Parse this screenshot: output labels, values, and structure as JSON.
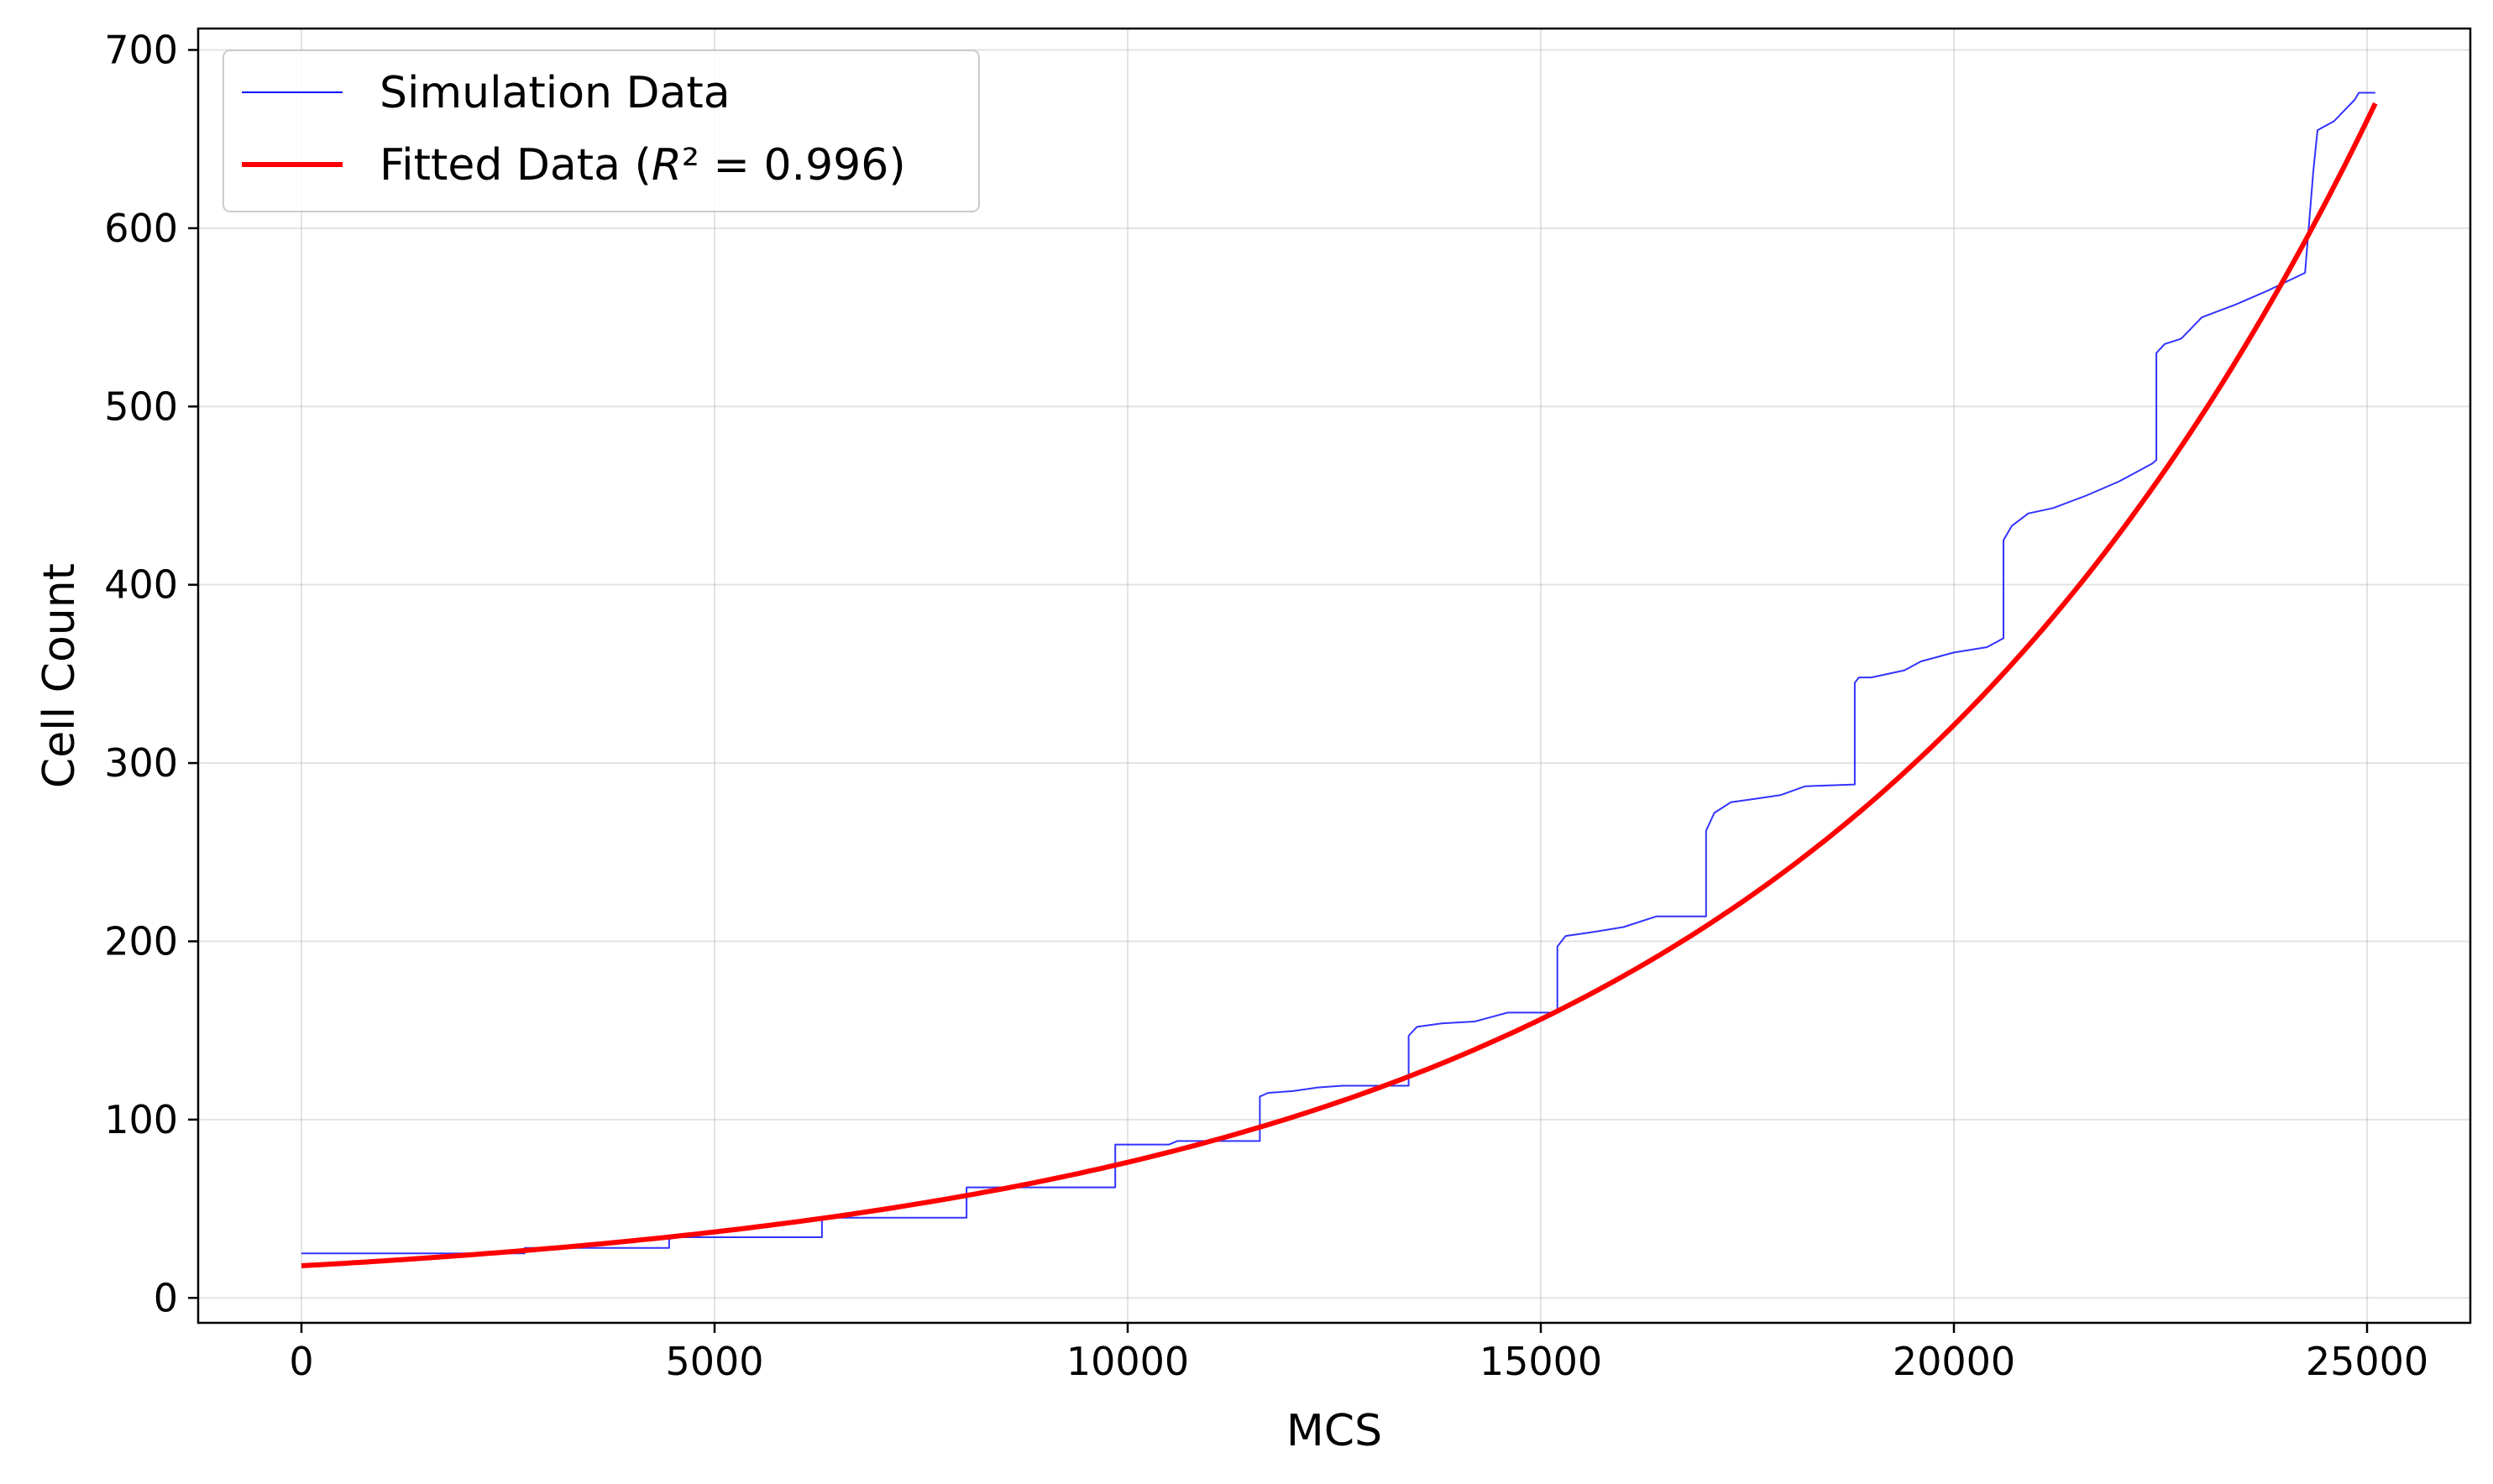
{
  "chart_data": {
    "type": "line",
    "xlabel": "MCS",
    "ylabel": "Cell Count",
    "xlim": [
      -1250,
      26250
    ],
    "ylim": [
      -14,
      712
    ],
    "x_ticks": [
      0,
      5000,
      10000,
      15000,
      20000,
      25000
    ],
    "x_tick_labels": [
      "0",
      "5000",
      "10000",
      "15000",
      "20000",
      "25000"
    ],
    "y_ticks": [
      0,
      100,
      200,
      300,
      400,
      500,
      600,
      700
    ],
    "y_tick_labels": [
      "0",
      "100",
      "200",
      "300",
      "400",
      "500",
      "600",
      "700"
    ],
    "grid": true,
    "legend_position": "upper-left",
    "series": [
      {
        "name": "Simulation Data",
        "color": "#0000ff",
        "style": "step",
        "x": [
          0,
          2700,
          2700,
          4450,
          4450,
          4550,
          6300,
          6300,
          6500,
          8050,
          8050,
          8200,
          9850,
          9850,
          10000,
          10500,
          10600,
          11600,
          11600,
          11700,
          12000,
          12300,
          12600,
          13400,
          13400,
          13500,
          13800,
          14200,
          14600,
          15200,
          15200,
          15300,
          15600,
          16000,
          16400,
          17000,
          17000,
          17100,
          17300,
          17600,
          17900,
          18200,
          18800,
          18800,
          18850,
          19000,
          19200,
          19400,
          19600,
          20000,
          20400,
          20600,
          20600,
          20700,
          20900,
          21200,
          21600,
          22000,
          22400,
          22450,
          22450,
          22550,
          22750,
          23000,
          23400,
          23800,
          24250,
          24350,
          24400,
          24600,
          24850,
          24900,
          25100
        ],
        "y": [
          25,
          25,
          28,
          28,
          33,
          34,
          34,
          45,
          45,
          45,
          62,
          62,
          62,
          86,
          86,
          86,
          88,
          88,
          113,
          115,
          116,
          118,
          119,
          119,
          147,
          152,
          154,
          155,
          160,
          160,
          197,
          203,
          205,
          208,
          214,
          214,
          262,
          272,
          278,
          280,
          282,
          287,
          288,
          345,
          348,
          348,
          350,
          352,
          357,
          362,
          365,
          370,
          425,
          433,
          440,
          443,
          450,
          458,
          468,
          470,
          530,
          535,
          538,
          550,
          557,
          565,
          575,
          632,
          655,
          660,
          672,
          676,
          676
        ]
      },
      {
        "name": "Fitted Data ($R^2 = 0.996$)",
        "color": "#ff0000",
        "style": "exponential-fit",
        "fit": {
          "a": 18.0,
          "b": 0.0001441
        },
        "x_range": [
          0,
          25100
        ]
      }
    ]
  },
  "legend": {
    "items": [
      {
        "label": "Simulation Data",
        "color": "#0000ff"
      },
      {
        "label_prefix": "Fitted Data (",
        "label_r": "R",
        "label_suffix": "² = 0.996)",
        "color": "#ff0000"
      }
    ]
  }
}
